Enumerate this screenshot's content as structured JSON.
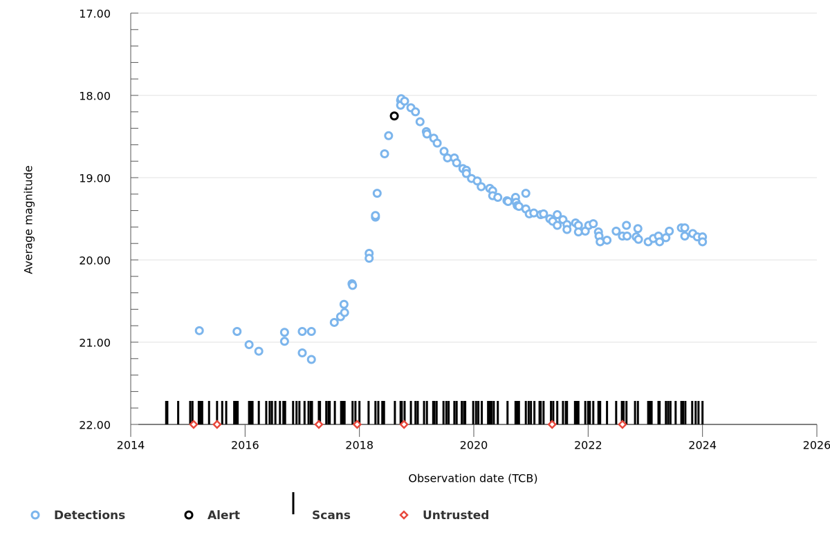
{
  "chart_data": {
    "type": "scatter",
    "xlabel": "Observation date (TCB)",
    "ylabel": "Average magnitude",
    "xlim": [
      2014,
      2026
    ],
    "xticks": [
      2014,
      2016,
      2018,
      2020,
      2022,
      2024,
      2026
    ],
    "ylim": [
      22,
      17
    ],
    "yticks": [
      {
        "value": 17,
        "label": "17.00"
      },
      {
        "value": 18,
        "label": "18.00"
      },
      {
        "value": 19,
        "label": "19.00"
      },
      {
        "value": 20,
        "label": "20.00"
      },
      {
        "value": 21,
        "label": "21.00"
      },
      {
        "value": 22,
        "label": "22.00"
      }
    ],
    "yminorticks": [
      17.2,
      17.4,
      17.6,
      17.8,
      18.2,
      18.4,
      18.6,
      18.8,
      19.2,
      19.4,
      19.6,
      19.8,
      20.2,
      20.4,
      20.6,
      20.8,
      21.2,
      21.4,
      21.6,
      21.8
    ],
    "grid": true,
    "series": [
      {
        "name": "Detections",
        "color": "#7cb5ec",
        "marker": "circle",
        "x": [
          2015.2,
          2015.86,
          2016.07,
          2016.24,
          2016.69,
          2016.69,
          2017.0,
          2017.16,
          2017.0,
          2017.16,
          2017.56,
          2017.67,
          2017.74,
          2017.73,
          2017.87,
          2017.88,
          2018.17,
          2018.17,
          2018.28,
          2018.28,
          2018.31,
          2018.44,
          2018.51,
          2018.72,
          2018.72,
          2018.73,
          2018.79,
          2018.9,
          2018.98,
          2019.06,
          2019.17,
          2019.18,
          2019.3,
          2019.36,
          2019.48,
          2019.54,
          2019.66,
          2019.7,
          2019.81,
          2019.87,
          2019.87,
          2019.96,
          2020.06,
          2020.13,
          2020.28,
          2020.33,
          2020.33,
          2020.42,
          2020.58,
          2020.6,
          2020.73,
          2020.74,
          2020.76,
          2020.79,
          2020.91,
          2020.91,
          2020.97,
          2021.05,
          2021.17,
          2021.22,
          2021.33,
          2021.38,
          2021.46,
          2021.46,
          2021.56,
          2021.63,
          2021.63,
          2021.78,
          2021.83,
          2021.83,
          2021.95,
          2022.01,
          2022.09,
          2022.18,
          2022.19,
          2022.21,
          2022.33,
          2022.49,
          2022.6,
          2022.67,
          2022.68,
          2022.84,
          2022.87,
          2022.88,
          2023.05,
          2023.14,
          2023.23,
          2023.25,
          2023.36,
          2023.42,
          2023.63,
          2023.69,
          2023.69,
          2023.83,
          2023.91,
          2024.0,
          2024.0
        ],
        "values": [
          20.86,
          20.87,
          21.03,
          21.11,
          20.88,
          20.99,
          20.87,
          20.87,
          21.13,
          21.21,
          20.76,
          20.69,
          20.64,
          20.54,
          20.29,
          20.31,
          19.92,
          19.98,
          19.48,
          19.46,
          19.19,
          18.71,
          18.49,
          18.06,
          18.12,
          18.04,
          18.07,
          18.15,
          18.2,
          18.32,
          18.44,
          18.47,
          18.52,
          18.58,
          18.68,
          18.76,
          18.76,
          18.82,
          18.89,
          18.91,
          18.95,
          19.01,
          19.04,
          19.11,
          19.13,
          19.16,
          19.22,
          19.24,
          19.28,
          19.29,
          19.24,
          19.3,
          19.34,
          19.35,
          19.19,
          19.38,
          19.44,
          19.43,
          19.45,
          19.44,
          19.5,
          19.53,
          19.45,
          19.58,
          19.51,
          19.57,
          19.63,
          19.55,
          19.58,
          19.66,
          19.65,
          19.58,
          19.56,
          19.66,
          19.71,
          19.78,
          19.76,
          19.65,
          19.71,
          19.58,
          19.71,
          19.72,
          19.62,
          19.75,
          19.78,
          19.74,
          19.71,
          19.78,
          19.73,
          19.65,
          19.61,
          19.61,
          19.71,
          19.68,
          19.72,
          19.72,
          19.78
        ]
      },
      {
        "name": "Alert",
        "color": "#000000",
        "marker": "circle",
        "x": [
          2018.61
        ],
        "values": [
          18.25
        ]
      },
      {
        "name": "Scans",
        "color": "#000000",
        "marker": "bar",
        "x": [
          2014.62,
          2014.64,
          2014.83,
          2015.04,
          2015.08,
          2015.19,
          2015.22,
          2015.25,
          2015.37,
          2015.51,
          2015.6,
          2015.67,
          2015.81,
          2015.84,
          2015.87,
          2016.07,
          2016.1,
          2016.13,
          2016.24,
          2016.37,
          2016.43,
          2016.47,
          2016.53,
          2016.61,
          2016.67,
          2016.7,
          2016.84,
          2016.9,
          2016.95,
          2017.04,
          2017.11,
          2017.15,
          2017.17,
          2017.29,
          2017.31,
          2017.42,
          2017.46,
          2017.48,
          2017.57,
          2017.68,
          2017.71,
          2017.74,
          2017.88,
          2017.93,
          2018.0,
          2018.16,
          2018.28,
          2018.33,
          2018.4,
          2018.43,
          2018.62,
          2018.72,
          2018.74,
          2018.79,
          2018.9,
          2018.98,
          2019.02,
          2019.13,
          2019.18,
          2019.29,
          2019.31,
          2019.35,
          2019.47,
          2019.52,
          2019.56,
          2019.66,
          2019.7,
          2019.79,
          2019.83,
          2019.85,
          2019.99,
          2020.04,
          2020.08,
          2020.14,
          2020.25,
          2020.28,
          2020.31,
          2020.35,
          2020.42,
          2020.59,
          2020.73,
          2020.76,
          2020.79,
          2020.91,
          2020.96,
          2021.0,
          2021.06,
          2021.15,
          2021.17,
          2021.22,
          2021.35,
          2021.39,
          2021.46,
          2021.56,
          2021.61,
          2021.63,
          2021.77,
          2021.8,
          2021.83,
          2021.95,
          2022.0,
          2022.03,
          2022.09,
          2022.18,
          2022.21,
          2022.33,
          2022.49,
          2022.59,
          2022.62,
          2022.67,
          2022.82,
          2022.87,
          2023.05,
          2023.08,
          2023.11,
          2023.23,
          2023.25,
          2023.36,
          2023.4,
          2023.44,
          2023.53,
          2023.63,
          2023.66,
          2023.7,
          2023.82,
          2023.88,
          2023.93,
          2024.0
        ]
      },
      {
        "name": "Untrusted",
        "color": "#e8473b",
        "marker": "diamond",
        "x": [
          2015.1,
          2015.51,
          2017.29,
          2017.96,
          2018.78,
          2021.37,
          2022.6
        ]
      }
    ]
  }
}
